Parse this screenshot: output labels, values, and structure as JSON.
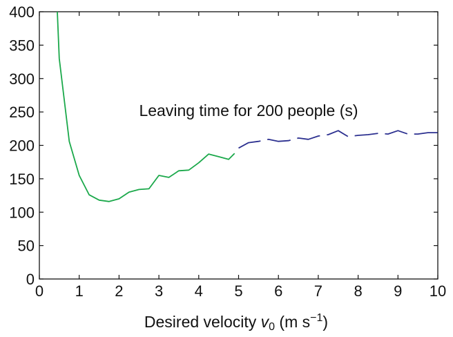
{
  "chart_data": {
    "type": "line",
    "annotation": "Leaving time for 200 people (s)",
    "xlabel_text": "Desired velocity ",
    "xlabel_var": "v",
    "xlabel_sub": "0",
    "xlabel_units": " (m s",
    "xlabel_sup": "−1",
    "xlabel_close": ")",
    "xlim": [
      0,
      10
    ],
    "ylim": [
      0,
      400
    ],
    "xticks": [
      0,
      1,
      2,
      3,
      4,
      5,
      6,
      7,
      8,
      9,
      10
    ],
    "yticks": [
      0,
      50,
      100,
      150,
      200,
      250,
      300,
      350,
      400
    ],
    "grid": false,
    "series": [
      {
        "style": "solid",
        "color": "#1aa84a",
        "x": [
          0.45,
          0.5,
          0.75,
          1.0,
          1.25,
          1.5,
          1.75,
          2.0,
          2.25,
          2.5,
          2.75,
          3.0,
          3.25,
          3.5,
          3.75,
          4.0,
          4.25,
          4.5,
          4.75,
          4.9
        ],
        "y": [
          400,
          330,
          206,
          155,
          126,
          118,
          116,
          120,
          130,
          134,
          135,
          155,
          152,
          162,
          163,
          174,
          187,
          183,
          179,
          188
        ]
      },
      {
        "style": "dashed",
        "color": "#2b2f8f",
        "x": [
          5.0,
          5.25,
          5.5,
          5.75,
          6.0,
          6.25,
          6.5,
          6.75,
          7.0,
          7.25,
          7.5,
          7.75,
          8.0,
          8.25,
          8.5,
          8.75,
          9.0,
          9.25,
          9.5,
          9.75,
          10.0
        ],
        "y": [
          196,
          204,
          206,
          209,
          206,
          207,
          211,
          209,
          214,
          216,
          222,
          213,
          215,
          216,
          218,
          217,
          222,
          217,
          217,
          219,
          219
        ]
      }
    ]
  }
}
